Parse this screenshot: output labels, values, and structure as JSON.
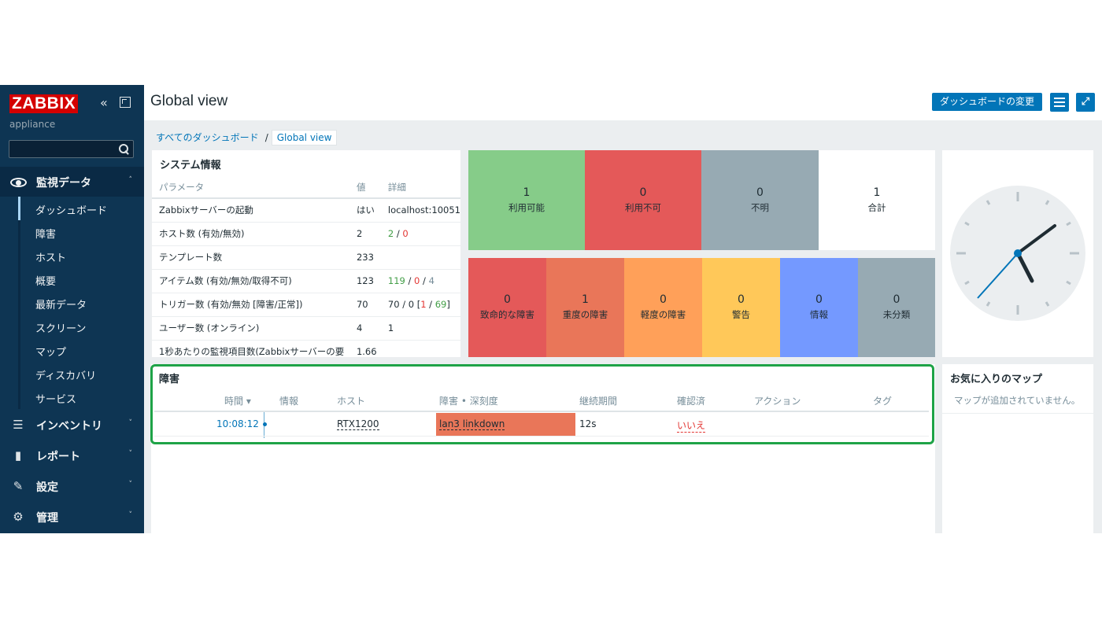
{
  "sidebar": {
    "logo": "ZABBIX",
    "server_name": "appliance",
    "search": {
      "value": "",
      "placeholder": ""
    },
    "monitoring": {
      "label": "監視データ",
      "arrow": "˄"
    },
    "submenu": [
      "ダッシュボード",
      "障害",
      "ホスト",
      "概要",
      "最新データ",
      "スクリーン",
      "マップ",
      "ディスカバリ",
      "サービス"
    ],
    "selected_submenu": "ダッシュボード",
    "sections": [
      {
        "label": "インベントリ",
        "icon": "list-icon",
        "arrow": "˅"
      },
      {
        "label": "レポート",
        "icon": "chart-icon",
        "arrow": "˅"
      },
      {
        "label": "設定",
        "icon": "wrench-icon",
        "arrow": "˅"
      },
      {
        "label": "管理",
        "icon": "gear-icon",
        "arrow": "˅"
      }
    ]
  },
  "header": {
    "title": "Global view",
    "edit_button": "ダッシュボードの変更"
  },
  "breadcrumb": {
    "all": "すべてのダッシュボード",
    "separator": "/",
    "current": "Global view"
  },
  "system_info": {
    "title": "システム情報",
    "headers": [
      "パラメータ",
      "値",
      "詳細"
    ],
    "rows": [
      {
        "param": "Zabbixサーバーの起動",
        "value": "はい",
        "detail": "localhost:10051"
      },
      {
        "param": "ホスト数 (有効/無効)",
        "value": "2",
        "detail_parts": [
          "2",
          " / ",
          "0"
        ]
      },
      {
        "param": "テンプレート数",
        "value": "233",
        "detail": ""
      },
      {
        "param": "アイテム数 (有効/無効/取得不可)",
        "value": "123",
        "detail_parts": [
          "119",
          " / ",
          "0",
          " / ",
          "4"
        ]
      },
      {
        "param": "トリガー数 (有効/無効 [障害/正常])",
        "value": "70",
        "detail_parts": [
          "70 / 0 [",
          "1",
          " / ",
          "69",
          "]"
        ]
      },
      {
        "param": "ユーザー数 (オンライン)",
        "value": "4",
        "detail": "1"
      },
      {
        "param": "1秒あたりの監視項目数(Zabbixサーバーの要",
        "value": "1.66",
        "detail": ""
      }
    ]
  },
  "host_availability": {
    "cells": [
      {
        "count": "1",
        "label": "利用可能",
        "color": "#86cc89"
      },
      {
        "count": "0",
        "label": "利用不可",
        "color": "#e45959"
      },
      {
        "count": "0",
        "label": "不明",
        "color": "#97aab3"
      },
      {
        "count": "1",
        "label": "合計",
        "color": "#ffffff"
      }
    ]
  },
  "problems_by_severity": {
    "cells": [
      {
        "count": "0",
        "label": "致命的な障害",
        "color": "#e45959"
      },
      {
        "count": "1",
        "label": "重度の障害",
        "color": "#e97659"
      },
      {
        "count": "0",
        "label": "軽度の障害",
        "color": "#ffa059"
      },
      {
        "count": "0",
        "label": "警告",
        "color": "#ffc859"
      },
      {
        "count": "0",
        "label": "情報",
        "color": "#7499ff"
      },
      {
        "count": "0",
        "label": "未分類",
        "color": "#97aab3"
      }
    ]
  },
  "problems": {
    "title": "障害",
    "headers": {
      "time": "時間 ▾",
      "info": "情報",
      "host": "ホスト",
      "problem": "障害 • 深刻度",
      "duration": "継続期間",
      "ack": "確認済",
      "actions": "アクション",
      "tags": "タグ"
    },
    "rows": [
      {
        "time": "10:08:12",
        "host": "RTX1200",
        "problem": "lan3 linkdown",
        "duration": "12s",
        "ack": "いいえ"
      }
    ]
  },
  "favourite_maps": {
    "title": "お気に入りのマップ",
    "message": "マップが追加されていません。"
  },
  "colors": {
    "sidebar_bg": "#0e3553",
    "accent": "#0275b8",
    "highlight": "#1ea347",
    "logo": "#d40000"
  }
}
